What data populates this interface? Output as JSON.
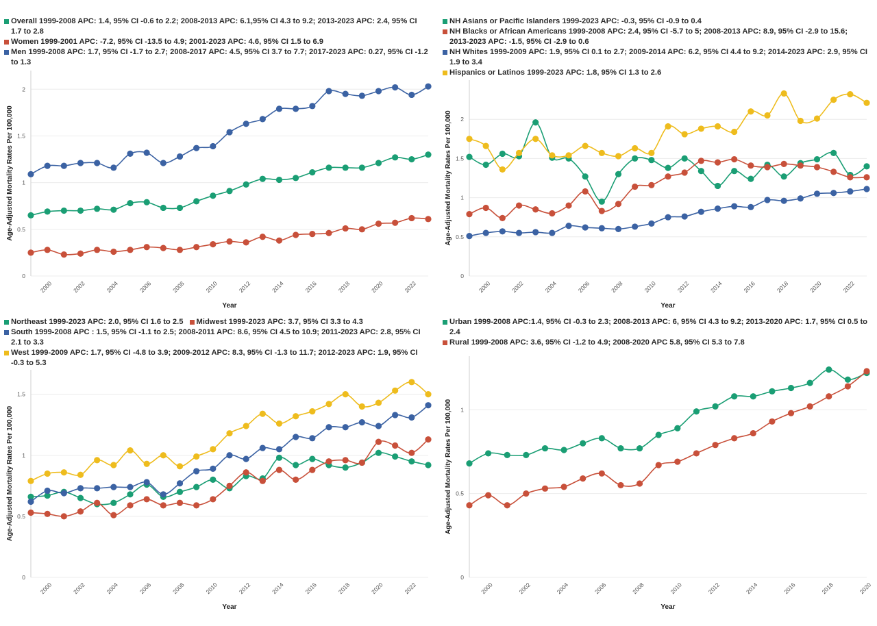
{
  "colors": {
    "green": "#1a9e74",
    "red": "#c8503a",
    "blue": "#3b62a3",
    "yellow": "#eebc1d"
  },
  "chart_data": [
    {
      "type": "line",
      "xlabel": "Year",
      "ylabel": "Age-Adjusted Mortality Rates Per 100,000",
      "ylim": [
        0,
        2.2
      ],
      "yticks": [
        0,
        0.5,
        1,
        1.5,
        2
      ],
      "ytick_labels": [
        "0",
        "0.5",
        "1",
        "1.5",
        "2"
      ],
      "xlim": [
        1999,
        2023
      ],
      "xticks": [
        2000,
        2002,
        2004,
        2006,
        2008,
        2010,
        2012,
        2014,
        2016,
        2018,
        2020,
        2022
      ],
      "legend_position": "top",
      "series": [
        {
          "name": "Overall 1999-2008 APC: 1.4, 95% CI -0.6 to 2.2; 2008-2013 APC: 6.1,95% CI 4.3 to 9.2; 2013-2023 APC: 2.4, 95% CI 1.7 to 2.8",
          "color": "green",
          "x": [
            1999,
            2000,
            2001,
            2002,
            2003,
            2004,
            2005,
            2006,
            2007,
            2008,
            2009,
            2010,
            2011,
            2012,
            2013,
            2014,
            2015,
            2016,
            2017,
            2018,
            2019,
            2020,
            2021,
            2022,
            2023
          ],
          "values": [
            0.65,
            0.69,
            0.7,
            0.7,
            0.72,
            0.71,
            0.78,
            0.79,
            0.73,
            0.73,
            0.8,
            0.86,
            0.91,
            0.98,
            1.04,
            1.03,
            1.05,
            1.11,
            1.16,
            1.16,
            1.16,
            1.21,
            1.27,
            1.25,
            1.3
          ]
        },
        {
          "name": "Women 1999-2001 APC: -7.2, 95% CI -13.5 to 4.9; 2001-2023 APC: 4.6, 95% CI 1.5 to 6.9",
          "color": "red",
          "x": [
            1999,
            2000,
            2001,
            2002,
            2003,
            2004,
            2005,
            2006,
            2007,
            2008,
            2009,
            2010,
            2011,
            2012,
            2013,
            2014,
            2015,
            2016,
            2017,
            2018,
            2019,
            2020,
            2021,
            2022,
            2023
          ],
          "values": [
            0.25,
            0.28,
            0.23,
            0.24,
            0.28,
            0.26,
            0.28,
            0.31,
            0.3,
            0.28,
            0.31,
            0.34,
            0.37,
            0.36,
            0.42,
            0.38,
            0.44,
            0.45,
            0.46,
            0.51,
            0.5,
            0.56,
            0.57,
            0.62,
            0.61
          ]
        },
        {
          "name": "Men 1999-2008 APC: 1.7, 95% CI -1.7 to 2.7; 2008-2017 APC: 4.5, 95% CI 3.7 to 7.7; 2017-2023 APC: 0.27, 95% CI -1.2 to 1.3",
          "color": "blue",
          "x": [
            1999,
            2000,
            2001,
            2002,
            2003,
            2004,
            2005,
            2006,
            2007,
            2008,
            2009,
            2010,
            2011,
            2012,
            2013,
            2014,
            2015,
            2016,
            2017,
            2018,
            2019,
            2020,
            2021,
            2022,
            2023
          ],
          "values": [
            1.09,
            1.18,
            1.18,
            1.21,
            1.21,
            1.16,
            1.31,
            1.32,
            1.21,
            1.28,
            1.37,
            1.39,
            1.54,
            1.63,
            1.68,
            1.79,
            1.79,
            1.82,
            1.98,
            1.95,
            1.93,
            1.98,
            2.02,
            1.94,
            2.03
          ]
        }
      ]
    },
    {
      "type": "line",
      "xlabel": "Year",
      "ylabel": "Age-Adjusted Mortality Rates Per 100,000",
      "ylim": [
        0,
        2.5
      ],
      "yticks": [
        0,
        0.5,
        1,
        1.5,
        2
      ],
      "ytick_labels": [
        "0",
        "0.5",
        "1",
        "1.5",
        "2"
      ],
      "xlim": [
        1999,
        2023
      ],
      "xticks": [
        2000,
        2002,
        2004,
        2006,
        2008,
        2010,
        2012,
        2014,
        2016,
        2018,
        2020,
        2022
      ],
      "legend_position": "top",
      "series": [
        {
          "name": "NH Asians or Pacific Islanders 1999-2023 APC: -0.3, 95% CI -0.9 to 0.4",
          "color": "green",
          "x": [
            1999,
            2000,
            2001,
            2002,
            2003,
            2004,
            2005,
            2006,
            2007,
            2008,
            2009,
            2010,
            2011,
            2012,
            2013,
            2014,
            2015,
            2016,
            2017,
            2018,
            2019,
            2020,
            2021,
            2022,
            2023
          ],
          "values": [
            1.52,
            1.42,
            1.56,
            1.53,
            1.96,
            1.51,
            1.5,
            1.27,
            0.95,
            1.3,
            1.5,
            1.48,
            1.38,
            1.5,
            1.34,
            1.15,
            1.34,
            1.24,
            1.42,
            1.27,
            1.44,
            1.49,
            1.57,
            1.29,
            1.4
          ]
        },
        {
          "name": "NH Blacks or African Americans 1999-2008 APC: 2.4, 95% CI -5.7 to 5; 2008-2013 APC: 8.9, 95% CI -2.9 to 15.6; 2013-2023 APC: -1.5, 95% CI -2.9 to 0.6",
          "color": "red",
          "x": [
            1999,
            2000,
            2001,
            2002,
            2003,
            2004,
            2005,
            2006,
            2007,
            2008,
            2009,
            2010,
            2011,
            2012,
            2013,
            2014,
            2015,
            2016,
            2017,
            2018,
            2019,
            2020,
            2021,
            2022,
            2023
          ],
          "values": [
            0.79,
            0.87,
            0.74,
            0.9,
            0.85,
            0.8,
            0.9,
            1.08,
            0.83,
            0.92,
            1.14,
            1.16,
            1.27,
            1.32,
            1.47,
            1.45,
            1.49,
            1.41,
            1.39,
            1.43,
            1.41,
            1.39,
            1.33,
            1.26,
            1.26
          ]
        },
        {
          "name": "NH Whites 1999-2009 APC: 1.9, 95% CI 0.1 to 2.7; 2009-2014 APC: 6.2, 95% CI 4.4 to 9.2; 2014-2023 APC: 2.9, 95% CI 1.9 to 3.4",
          "color": "blue",
          "x": [
            1999,
            2000,
            2001,
            2002,
            2003,
            2004,
            2005,
            2006,
            2007,
            2008,
            2009,
            2010,
            2011,
            2012,
            2013,
            2014,
            2015,
            2016,
            2017,
            2018,
            2019,
            2020,
            2021,
            2022,
            2023
          ],
          "values": [
            0.51,
            0.55,
            0.57,
            0.55,
            0.56,
            0.55,
            0.64,
            0.62,
            0.61,
            0.6,
            0.63,
            0.67,
            0.75,
            0.76,
            0.82,
            0.86,
            0.89,
            0.88,
            0.97,
            0.96,
            0.99,
            1.05,
            1.06,
            1.08,
            1.11
          ]
        },
        {
          "name": "Hispanics or Latinos 1999-2023 APC: 1.8, 95% CI 1.3 to 2.6",
          "color": "yellow",
          "x": [
            1999,
            2000,
            2001,
            2002,
            2003,
            2004,
            2005,
            2006,
            2007,
            2008,
            2009,
            2010,
            2011,
            2012,
            2013,
            2014,
            2015,
            2016,
            2017,
            2018,
            2019,
            2020,
            2021,
            2022,
            2023
          ],
          "values": [
            1.75,
            1.66,
            1.36,
            1.57,
            1.75,
            1.54,
            1.54,
            1.66,
            1.57,
            1.53,
            1.63,
            1.57,
            1.91,
            1.81,
            1.88,
            1.91,
            1.84,
            2.1,
            2.05,
            2.33,
            1.98,
            2.01,
            2.25,
            2.32,
            2.21
          ]
        }
      ]
    },
    {
      "type": "line",
      "xlabel": "Year",
      "ylabel": "Age-Adjusted Mortality Rates Per 100,000",
      "ylim": [
        0,
        1.7
      ],
      "yticks": [
        0,
        0.5,
        1,
        1.5
      ],
      "ytick_labels": [
        "0",
        "0.5",
        "1",
        "1.5"
      ],
      "xlim": [
        1999,
        2023
      ],
      "xticks": [
        2000,
        2002,
        2004,
        2006,
        2008,
        2010,
        2012,
        2014,
        2016,
        2018,
        2020,
        2022
      ],
      "legend_position": "top",
      "series": [
        {
          "name": "Northeast 1999-2023 APC: 2.0, 95% CI 1.6 to 2.5",
          "color": "green",
          "x": [
            1999,
            2000,
            2001,
            2002,
            2003,
            2004,
            2005,
            2006,
            2007,
            2008,
            2009,
            2010,
            2011,
            2012,
            2013,
            2014,
            2015,
            2016,
            2017,
            2018,
            2019,
            2020,
            2021,
            2022,
            2023
          ],
          "values": [
            0.66,
            0.67,
            0.7,
            0.65,
            0.6,
            0.61,
            0.68,
            0.76,
            0.66,
            0.7,
            0.74,
            0.8,
            0.73,
            0.83,
            0.81,
            0.98,
            0.92,
            0.97,
            0.92,
            0.9,
            0.94,
            1.02,
            0.99,
            0.95,
            0.92
          ]
        },
        {
          "name": "Midwest 1999-2023 APC: 3.7, 95% CI 3.3 to 4.3",
          "color": "red",
          "x": [
            1999,
            2000,
            2001,
            2002,
            2003,
            2004,
            2005,
            2006,
            2007,
            2008,
            2009,
            2010,
            2011,
            2012,
            2013,
            2014,
            2015,
            2016,
            2017,
            2018,
            2019,
            2020,
            2021,
            2022,
            2023
          ],
          "values": [
            0.53,
            0.52,
            0.5,
            0.54,
            0.61,
            0.51,
            0.59,
            0.64,
            0.59,
            0.61,
            0.59,
            0.64,
            0.75,
            0.86,
            0.79,
            0.88,
            0.8,
            0.88,
            0.95,
            0.96,
            0.94,
            1.11,
            1.08,
            1.02,
            1.13
          ]
        },
        {
          "name": "South 1999-2008 APC : 1.5, 95% CI -1.1 to 2.5; 2008-2011 APC: 8.6, 95% CI 4.5 to 10.9; 2011-2023 APC: 2.8, 95% CI 2.1 to 3.3",
          "color": "blue",
          "x": [
            1999,
            2000,
            2001,
            2002,
            2003,
            2004,
            2005,
            2006,
            2007,
            2008,
            2009,
            2010,
            2011,
            2012,
            2013,
            2014,
            2015,
            2016,
            2017,
            2018,
            2019,
            2020,
            2021,
            2022,
            2023
          ],
          "values": [
            0.62,
            0.71,
            0.69,
            0.73,
            0.73,
            0.74,
            0.74,
            0.78,
            0.68,
            0.77,
            0.87,
            0.89,
            1.0,
            0.97,
            1.06,
            1.05,
            1.15,
            1.14,
            1.23,
            1.23,
            1.27,
            1.24,
            1.33,
            1.31,
            1.41
          ]
        },
        {
          "name": "West 1999-2009 APC: 1.7, 95% CI -4.8 to 3.9; 2009-2012 APC: 8.3, 95% CI -1.3 to 11.7; 2012-2023 APC: 1.9, 95% CI -0.3 to 5.3",
          "color": "yellow",
          "x": [
            1999,
            2000,
            2001,
            2002,
            2003,
            2004,
            2005,
            2006,
            2007,
            2008,
            2009,
            2010,
            2011,
            2012,
            2013,
            2014,
            2015,
            2016,
            2017,
            2018,
            2019,
            2020,
            2021,
            2022,
            2023
          ],
          "values": [
            0.79,
            0.85,
            0.86,
            0.84,
            0.96,
            0.92,
            1.04,
            0.93,
            1.0,
            0.91,
            0.99,
            1.05,
            1.18,
            1.24,
            1.34,
            1.26,
            1.32,
            1.36,
            1.42,
            1.5,
            1.4,
            1.43,
            1.53,
            1.6,
            1.5
          ]
        }
      ]
    },
    {
      "type": "line",
      "xlabel": "Year",
      "ylabel": "Age-Adjusted Mortality Rates Per 100,000",
      "ylim": [
        0,
        1.32
      ],
      "yticks": [
        0,
        0.5,
        1
      ],
      "ytick_labels": [
        "0",
        "0.5",
        "1"
      ],
      "xlim": [
        1999,
        2020
      ],
      "xticks": [
        2000,
        2002,
        2004,
        2006,
        2008,
        2010,
        2012,
        2014,
        2016,
        2018,
        2020
      ],
      "legend_position": "top",
      "series": [
        {
          "name": "Urban 1999-2008 APC:1.4, 95% CI -0.3 to 2.3; 2008-2013 APC: 6, 95% CI 4.3 to 9.2; 2013-2020 APC: 1.7, 95% CI 0.5 to 2.4",
          "color": "green",
          "x": [
            1999,
            2000,
            2001,
            2002,
            2003,
            2004,
            2005,
            2006,
            2007,
            2008,
            2009,
            2010,
            2011,
            2012,
            2013,
            2014,
            2015,
            2016,
            2017,
            2018,
            2019,
            2020
          ],
          "values": [
            0.68,
            0.74,
            0.73,
            0.73,
            0.77,
            0.76,
            0.8,
            0.83,
            0.77,
            0.77,
            0.85,
            0.89,
            0.99,
            1.02,
            1.08,
            1.08,
            1.11,
            1.13,
            1.16,
            1.24,
            1.18,
            1.22
          ]
        },
        {
          "name": "Rural 1999-2008 APC: 3.6, 95% CI -1.2 to 4.9; 2008-2020 APC 5.8, 95% CI 5.3 to 7.8",
          "color": "red",
          "x": [
            1999,
            2000,
            2001,
            2002,
            2003,
            2004,
            2005,
            2006,
            2007,
            2008,
            2009,
            2010,
            2011,
            2012,
            2013,
            2014,
            2015,
            2016,
            2017,
            2018,
            2019,
            2020
          ],
          "values": [
            0.43,
            0.49,
            0.43,
            0.5,
            0.53,
            0.54,
            0.59,
            0.62,
            0.55,
            0.56,
            0.67,
            0.69,
            0.74,
            0.79,
            0.83,
            0.86,
            0.93,
            0.98,
            1.02,
            1.08,
            1.14,
            1.23
          ]
        }
      ]
    }
  ]
}
